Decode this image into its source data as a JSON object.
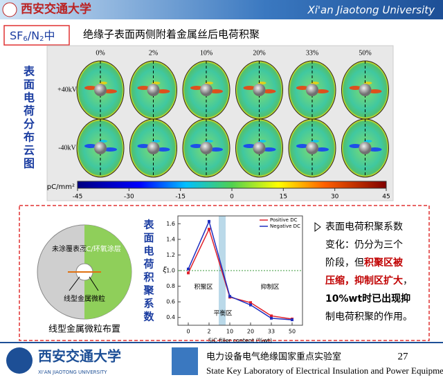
{
  "header": {
    "logo_text": "西安交通大学",
    "university": "Xi'an Jiaotong University"
  },
  "title_box": {
    "parts": [
      "SF",
      "6",
      "/N",
      "2",
      "中"
    ]
  },
  "title": "绝缘子表面两侧附着金属丝后电荷积聚",
  "side_label": "表面电荷分布云图",
  "heatmap": {
    "columns": [
      "0%",
      "2%",
      "10%",
      "20%",
      "33%",
      "50%"
    ],
    "rows": [
      "+40kV",
      "-40kV"
    ],
    "colorbar": {
      "unit": "pC/mm²",
      "ticks": [
        -45,
        -30,
        -15,
        0,
        15,
        30,
        45
      ],
      "lim": [
        -45,
        45
      ]
    }
  },
  "diagram": {
    "left_label": "未涂覆表面",
    "right_label": "SiC/环氧涂层",
    "particle_label": "线型金属微粒",
    "caption": "线型金属微粒布置"
  },
  "chart_data": {
    "type": "line",
    "y_title": "表面电荷积聚系数",
    "ylabel": "ξ",
    "xlabel": "SiC filler content (%wt)",
    "categories": [
      "0",
      "2",
      "10",
      "20",
      "33",
      "50"
    ],
    "series": [
      {
        "name": "Positive DC",
        "color": "#e0202a",
        "values": [
          0.97,
          1.53,
          0.66,
          0.59,
          0.42,
          0.38
        ]
      },
      {
        "name": "Negative DC",
        "color": "#1f2fbf",
        "values": [
          1.02,
          1.63,
          0.67,
          0.56,
          0.39,
          0.37
        ]
      }
    ],
    "ylim": [
      0.3,
      1.7
    ],
    "yticks": [
      0.4,
      0.6,
      0.8,
      {
        "value": 1,
        "label": "1.0"
      },
      1.2,
      1.4,
      1.6
    ],
    "reference_line": 1,
    "annotations": [
      "积聚区",
      "平衡区",
      "抑制区"
    ],
    "legend": "upper right"
  },
  "bullet": {
    "lines": [
      [
        {
          "text": "表面电荷积聚系数",
          "color": "#000000"
        }
      ],
      [
        {
          "text": "变化：仍分为三个",
          "color": "#000000"
        }
      ],
      [
        {
          "text": "阶段，但",
          "color": "#000000"
        },
        {
          "text": "积聚区被",
          "color": "#c00000"
        }
      ],
      [
        {
          "text": "压缩，抑制区扩大",
          "color": "#c00000"
        },
        {
          "text": "，",
          "color": "#000000"
        }
      ],
      [
        {
          "text": "10%wt时已出现抑",
          "color": "#000000"
        }
      ],
      [
        {
          "text": "制电荷积聚的作用。",
          "color": "#000000"
        }
      ]
    ]
  },
  "footer": {
    "logo_text": "西安交通大学",
    "logo_sub": "XI'AN JIAOTONG UNIVERSITY",
    "lab_cn": "电力设备电气绝缘国家重点实验室",
    "lab_en": "State Key Laboratory of Electrical Insulation and Power Equipment",
    "page": "27"
  }
}
